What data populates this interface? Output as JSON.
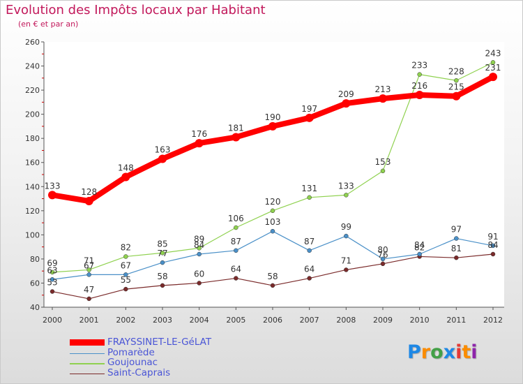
{
  "header": {
    "title": "Evolution des Impôts locaux par Habitant",
    "subtitle": "(en € et par an)"
  },
  "logo": {
    "letters": [
      "P",
      "r",
      "o",
      "x",
      "i",
      "t",
      "i"
    ],
    "colors": [
      "#1e88e5",
      "#fb8c00",
      "#43a047",
      "#1e88e5",
      "#e53935",
      "#fb8c00",
      "#8e24aa"
    ]
  },
  "chart_data": {
    "type": "line",
    "x": [
      "2000",
      "2001",
      "2002",
      "2003",
      "2004",
      "2005",
      "2006",
      "2007",
      "2008",
      "2009",
      "2010",
      "2011",
      "2012"
    ],
    "ylim": [
      40,
      260
    ],
    "yticks": [
      "40",
      "60",
      "80",
      "100",
      "120",
      "140",
      "160",
      "180",
      "200",
      "220",
      "240",
      "260"
    ],
    "grid": false,
    "legend_position": "bottom-left",
    "series": [
      {
        "name": "FRAYSSINET-LE-GéLAT",
        "color": "#ff0000",
        "values": [
          133,
          128,
          148,
          163,
          176,
          181,
          190,
          197,
          209,
          213,
          216,
          215,
          231
        ]
      },
      {
        "name": "Pomarède",
        "color": "#4a90c8",
        "values": [
          63,
          67,
          67,
          77,
          84,
          87,
          103,
          87,
          99,
          80,
          84,
          97,
          91
        ]
      },
      {
        "name": "Goujounac",
        "color": "#8fd14f",
        "values": [
          69,
          71,
          82,
          85,
          89,
          106,
          120,
          131,
          133,
          153,
          233,
          228,
          243
        ]
      },
      {
        "name": "Saint-Caprais",
        "color": "#7a2a2a",
        "values": [
          53,
          47,
          55,
          58,
          60,
          64,
          58,
          64,
          71,
          76,
          82,
          81,
          84
        ]
      }
    ]
  }
}
